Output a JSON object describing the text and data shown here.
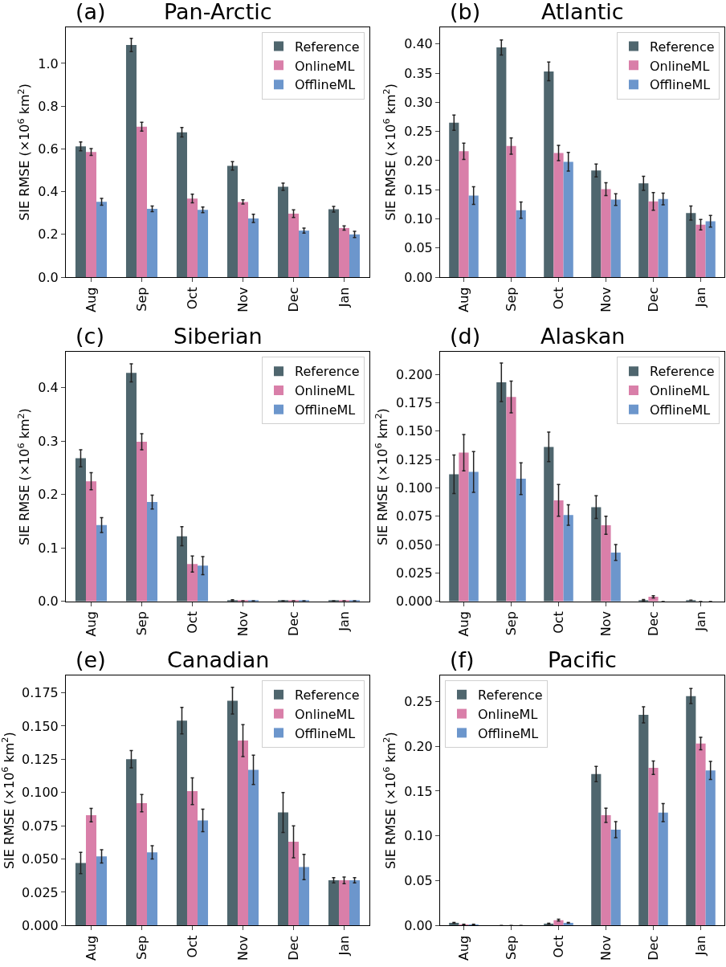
{
  "chart_data": [
    {
      "type": "bar",
      "title": "Pan-Arctic",
      "annotations": [
        "(a)"
      ],
      "ylabel": "SIE RMSE (×10$^{6}$ km$^{2}$)",
      "categories": [
        "Aug",
        "Sep",
        "Oct",
        "Nov",
        "Dec",
        "Jan"
      ],
      "legend": "top right",
      "ylim": [
        0,
        1.17
      ],
      "yticks": [
        {
          "value": 0,
          "label": "0.0"
        },
        {
          "value": 0.2,
          "label": "0.2"
        },
        {
          "value": 0.4,
          "label": "0.4"
        },
        {
          "value": 0.6,
          "label": "0.6"
        },
        {
          "value": 0.8,
          "label": "0.8"
        },
        {
          "value": 1.0,
          "label": "1.0"
        }
      ],
      "series": [
        {
          "name": "Reference",
          "color": "#4f666e",
          "values": [
            0.612,
            1.086,
            0.678,
            0.521,
            0.423,
            0.318
          ],
          "errors": [
            0.021,
            0.031,
            0.022,
            0.02,
            0.017,
            0.013
          ]
        },
        {
          "name": "OnlineML",
          "color": "#d97fa9",
          "values": [
            0.586,
            0.704,
            0.368,
            0.352,
            0.297,
            0.23
          ],
          "errors": [
            0.016,
            0.021,
            0.02,
            0.01,
            0.018,
            0.01
          ]
        },
        {
          "name": "OfflineML",
          "color": "#6c96cc",
          "values": [
            0.353,
            0.32,
            0.315,
            0.275,
            0.218,
            0.2
          ],
          "errors": [
            0.016,
            0.013,
            0.013,
            0.019,
            0.012,
            0.015
          ]
        }
      ]
    },
    {
      "type": "bar",
      "title": "Atlantic",
      "annotations": [
        "(b)"
      ],
      "ylabel": "SIE RMSE (×10$^{6}$ km$^{2}$)",
      "categories": [
        "Aug",
        "Sep",
        "Oct",
        "Nov",
        "Dec",
        "Jan"
      ],
      "legend": "top right",
      "ylim": [
        0,
        0.429
      ],
      "yticks": [
        {
          "value": 0,
          "label": "0.00"
        },
        {
          "value": 0.05,
          "label": "0.05"
        },
        {
          "value": 0.1,
          "label": "0.10"
        },
        {
          "value": 0.15,
          "label": "0.15"
        },
        {
          "value": 0.2,
          "label": "0.20"
        },
        {
          "value": 0.25,
          "label": "0.25"
        },
        {
          "value": 0.3,
          "label": "0.30"
        },
        {
          "value": 0.35,
          "label": "0.35"
        },
        {
          "value": 0.4,
          "label": "0.40"
        }
      ],
      "series": [
        {
          "name": "Reference",
          "color": "#4f666e",
          "values": [
            0.265,
            0.394,
            0.353,
            0.183,
            0.161,
            0.11
          ],
          "errors": [
            0.013,
            0.013,
            0.016,
            0.011,
            0.012,
            0.012
          ]
        },
        {
          "name": "OnlineML",
          "color": "#d97fa9",
          "values": [
            0.216,
            0.225,
            0.213,
            0.151,
            0.13,
            0.09
          ],
          "errors": [
            0.014,
            0.014,
            0.013,
            0.011,
            0.015,
            0.009
          ]
        },
        {
          "name": "OfflineML",
          "color": "#6c96cc",
          "values": [
            0.14,
            0.115,
            0.198,
            0.133,
            0.134,
            0.096
          ],
          "errors": [
            0.015,
            0.014,
            0.016,
            0.01,
            0.01,
            0.01
          ]
        }
      ]
    },
    {
      "type": "bar",
      "title": "Siberian",
      "annotations": [
        "(c)"
      ],
      "ylabel": "SIE RMSE (×10$^{6}$ km$^{2}$)",
      "categories": [
        "Aug",
        "Sep",
        "Oct",
        "Nov",
        "Dec",
        "Jan"
      ],
      "legend": "top right",
      "ylim": [
        0,
        0.467
      ],
      "yticks": [
        {
          "value": 0,
          "label": "0.0"
        },
        {
          "value": 0.1,
          "label": "0.1"
        },
        {
          "value": 0.2,
          "label": "0.2"
        },
        {
          "value": 0.3,
          "label": "0.3"
        },
        {
          "value": 0.4,
          "label": "0.4"
        }
      ],
      "series": [
        {
          "name": "Reference",
          "color": "#4f666e",
          "values": [
            0.268,
            0.428,
            0.122,
            0.002,
            0.001,
            0.001
          ],
          "errors": [
            0.016,
            0.017,
            0.018,
            0.001,
            0,
            0
          ]
        },
        {
          "name": "OnlineML",
          "color": "#d97fa9",
          "values": [
            0.225,
            0.299,
            0.07,
            0.001,
            0.001,
            0.001
          ],
          "errors": [
            0.016,
            0.015,
            0.015,
            0,
            0,
            0
          ]
        },
        {
          "name": "OfflineML",
          "color": "#6c96cc",
          "values": [
            0.143,
            0.186,
            0.067,
            0.001,
            0.001,
            0.001
          ],
          "errors": [
            0.014,
            0.013,
            0.017,
            0,
            0,
            0
          ]
        }
      ]
    },
    {
      "type": "bar",
      "title": "Alaskan",
      "annotations": [
        "(d)"
      ],
      "ylabel": "SIE RMSE (×10$^{6}$ km$^{2}$)",
      "categories": [
        "Aug",
        "Sep",
        "Oct",
        "Nov",
        "Dec",
        "Jan"
      ],
      "legend": "top right",
      "ylim": [
        0,
        0.2196
      ],
      "yticks": [
        {
          "value": 0,
          "label": "0.000"
        },
        {
          "value": 0.025,
          "label": "0.025"
        },
        {
          "value": 0.05,
          "label": "0.050"
        },
        {
          "value": 0.075,
          "label": "0.075"
        },
        {
          "value": 0.1,
          "label": "0.100"
        },
        {
          "value": 0.125,
          "label": "0.125"
        },
        {
          "value": 0.15,
          "label": "0.150"
        },
        {
          "value": 0.175,
          "label": "0.175"
        },
        {
          "value": 0.2,
          "label": "0.200"
        }
      ],
      "series": [
        {
          "name": "Reference",
          "color": "#4f666e",
          "values": [
            0.112,
            0.193,
            0.136,
            0.083,
            0.001,
            0.001
          ],
          "errors": [
            0.017,
            0.017,
            0.013,
            0.01,
            0.0005,
            0
          ]
        },
        {
          "name": "OnlineML",
          "color": "#d97fa9",
          "values": [
            0.131,
            0.18,
            0.089,
            0.067,
            0.004,
            0
          ],
          "errors": [
            0.016,
            0.014,
            0.014,
            0.008,
            0.001,
            0
          ]
        },
        {
          "name": "OfflineML",
          "color": "#6c96cc",
          "values": [
            0.114,
            0.108,
            0.076,
            0.043,
            0,
            0
          ],
          "errors": [
            0.018,
            0.014,
            0.009,
            0.007,
            0,
            0
          ]
        }
      ]
    },
    {
      "type": "bar",
      "title": "Canadian",
      "annotations": [
        "(e)"
      ],
      "ylabel": "SIE RMSE (×10$^{6}$ km$^{2}$)",
      "categories": [
        "Aug",
        "Sep",
        "Oct",
        "Nov",
        "Dec",
        "Jan"
      ],
      "legend": "top right",
      "ylim": [
        0,
        0.188
      ],
      "yticks": [
        {
          "value": 0,
          "label": "0.000"
        },
        {
          "value": 0.025,
          "label": "0.025"
        },
        {
          "value": 0.05,
          "label": "0.050"
        },
        {
          "value": 0.075,
          "label": "0.075"
        },
        {
          "value": 0.1,
          "label": "0.100"
        },
        {
          "value": 0.125,
          "label": "0.125"
        },
        {
          "value": 0.15,
          "label": "0.150"
        },
        {
          "value": 0.175,
          "label": "0.175"
        }
      ],
      "series": [
        {
          "name": "Reference",
          "color": "#4f666e",
          "values": [
            0.047,
            0.125,
            0.154,
            0.169,
            0.085,
            0.034
          ],
          "errors": [
            0.008,
            0.0065,
            0.01,
            0.01,
            0.015,
            0.002
          ]
        },
        {
          "name": "OnlineML",
          "color": "#d97fa9",
          "values": [
            0.083,
            0.092,
            0.101,
            0.139,
            0.063,
            0.034
          ],
          "errors": [
            0.005,
            0.0065,
            0.01,
            0.012,
            0.012,
            0.0025
          ]
        },
        {
          "name": "OfflineML",
          "color": "#6c96cc",
          "values": [
            0.052,
            0.055,
            0.079,
            0.117,
            0.044,
            0.034
          ],
          "errors": [
            0.005,
            0.005,
            0.0085,
            0.011,
            0.0095,
            0.002
          ]
        }
      ]
    },
    {
      "type": "bar",
      "title": "Pacific",
      "annotations": [
        "(f)"
      ],
      "ylabel": "SIE RMSE (×10$^{6}$ km$^{2}$)",
      "categories": [
        "Aug",
        "Sep",
        "Oct",
        "Nov",
        "Dec",
        "Jan"
      ],
      "legend": "top left",
      "ylim": [
        0,
        0.279
      ],
      "yticks": [
        {
          "value": 0,
          "label": "0.00"
        },
        {
          "value": 0.05,
          "label": "0.05"
        },
        {
          "value": 0.1,
          "label": "0.10"
        },
        {
          "value": 0.15,
          "label": "0.15"
        },
        {
          "value": 0.2,
          "label": "0.20"
        },
        {
          "value": 0.25,
          "label": "0.25"
        }
      ],
      "series": [
        {
          "name": "Reference",
          "color": "#4f666e",
          "values": [
            0.003,
            0,
            0.002,
            0.169,
            0.235,
            0.256
          ],
          "errors": [
            0.0005,
            0,
            0.0005,
            0.0085,
            0.009,
            0.0085
          ]
        },
        {
          "name": "OnlineML",
          "color": "#d97fa9",
          "values": [
            0.001,
            0,
            0.006,
            0.123,
            0.176,
            0.203
          ],
          "errors": [
            0.0005,
            0,
            0.001,
            0.008,
            0.0075,
            0.007
          ]
        },
        {
          "name": "OfflineML",
          "color": "#6c96cc",
          "values": [
            0.001,
            0,
            0.003,
            0.107,
            0.126,
            0.173
          ],
          "errors": [
            0.0005,
            0,
            0.0005,
            0.009,
            0.01,
            0.01
          ]
        }
      ]
    }
  ]
}
